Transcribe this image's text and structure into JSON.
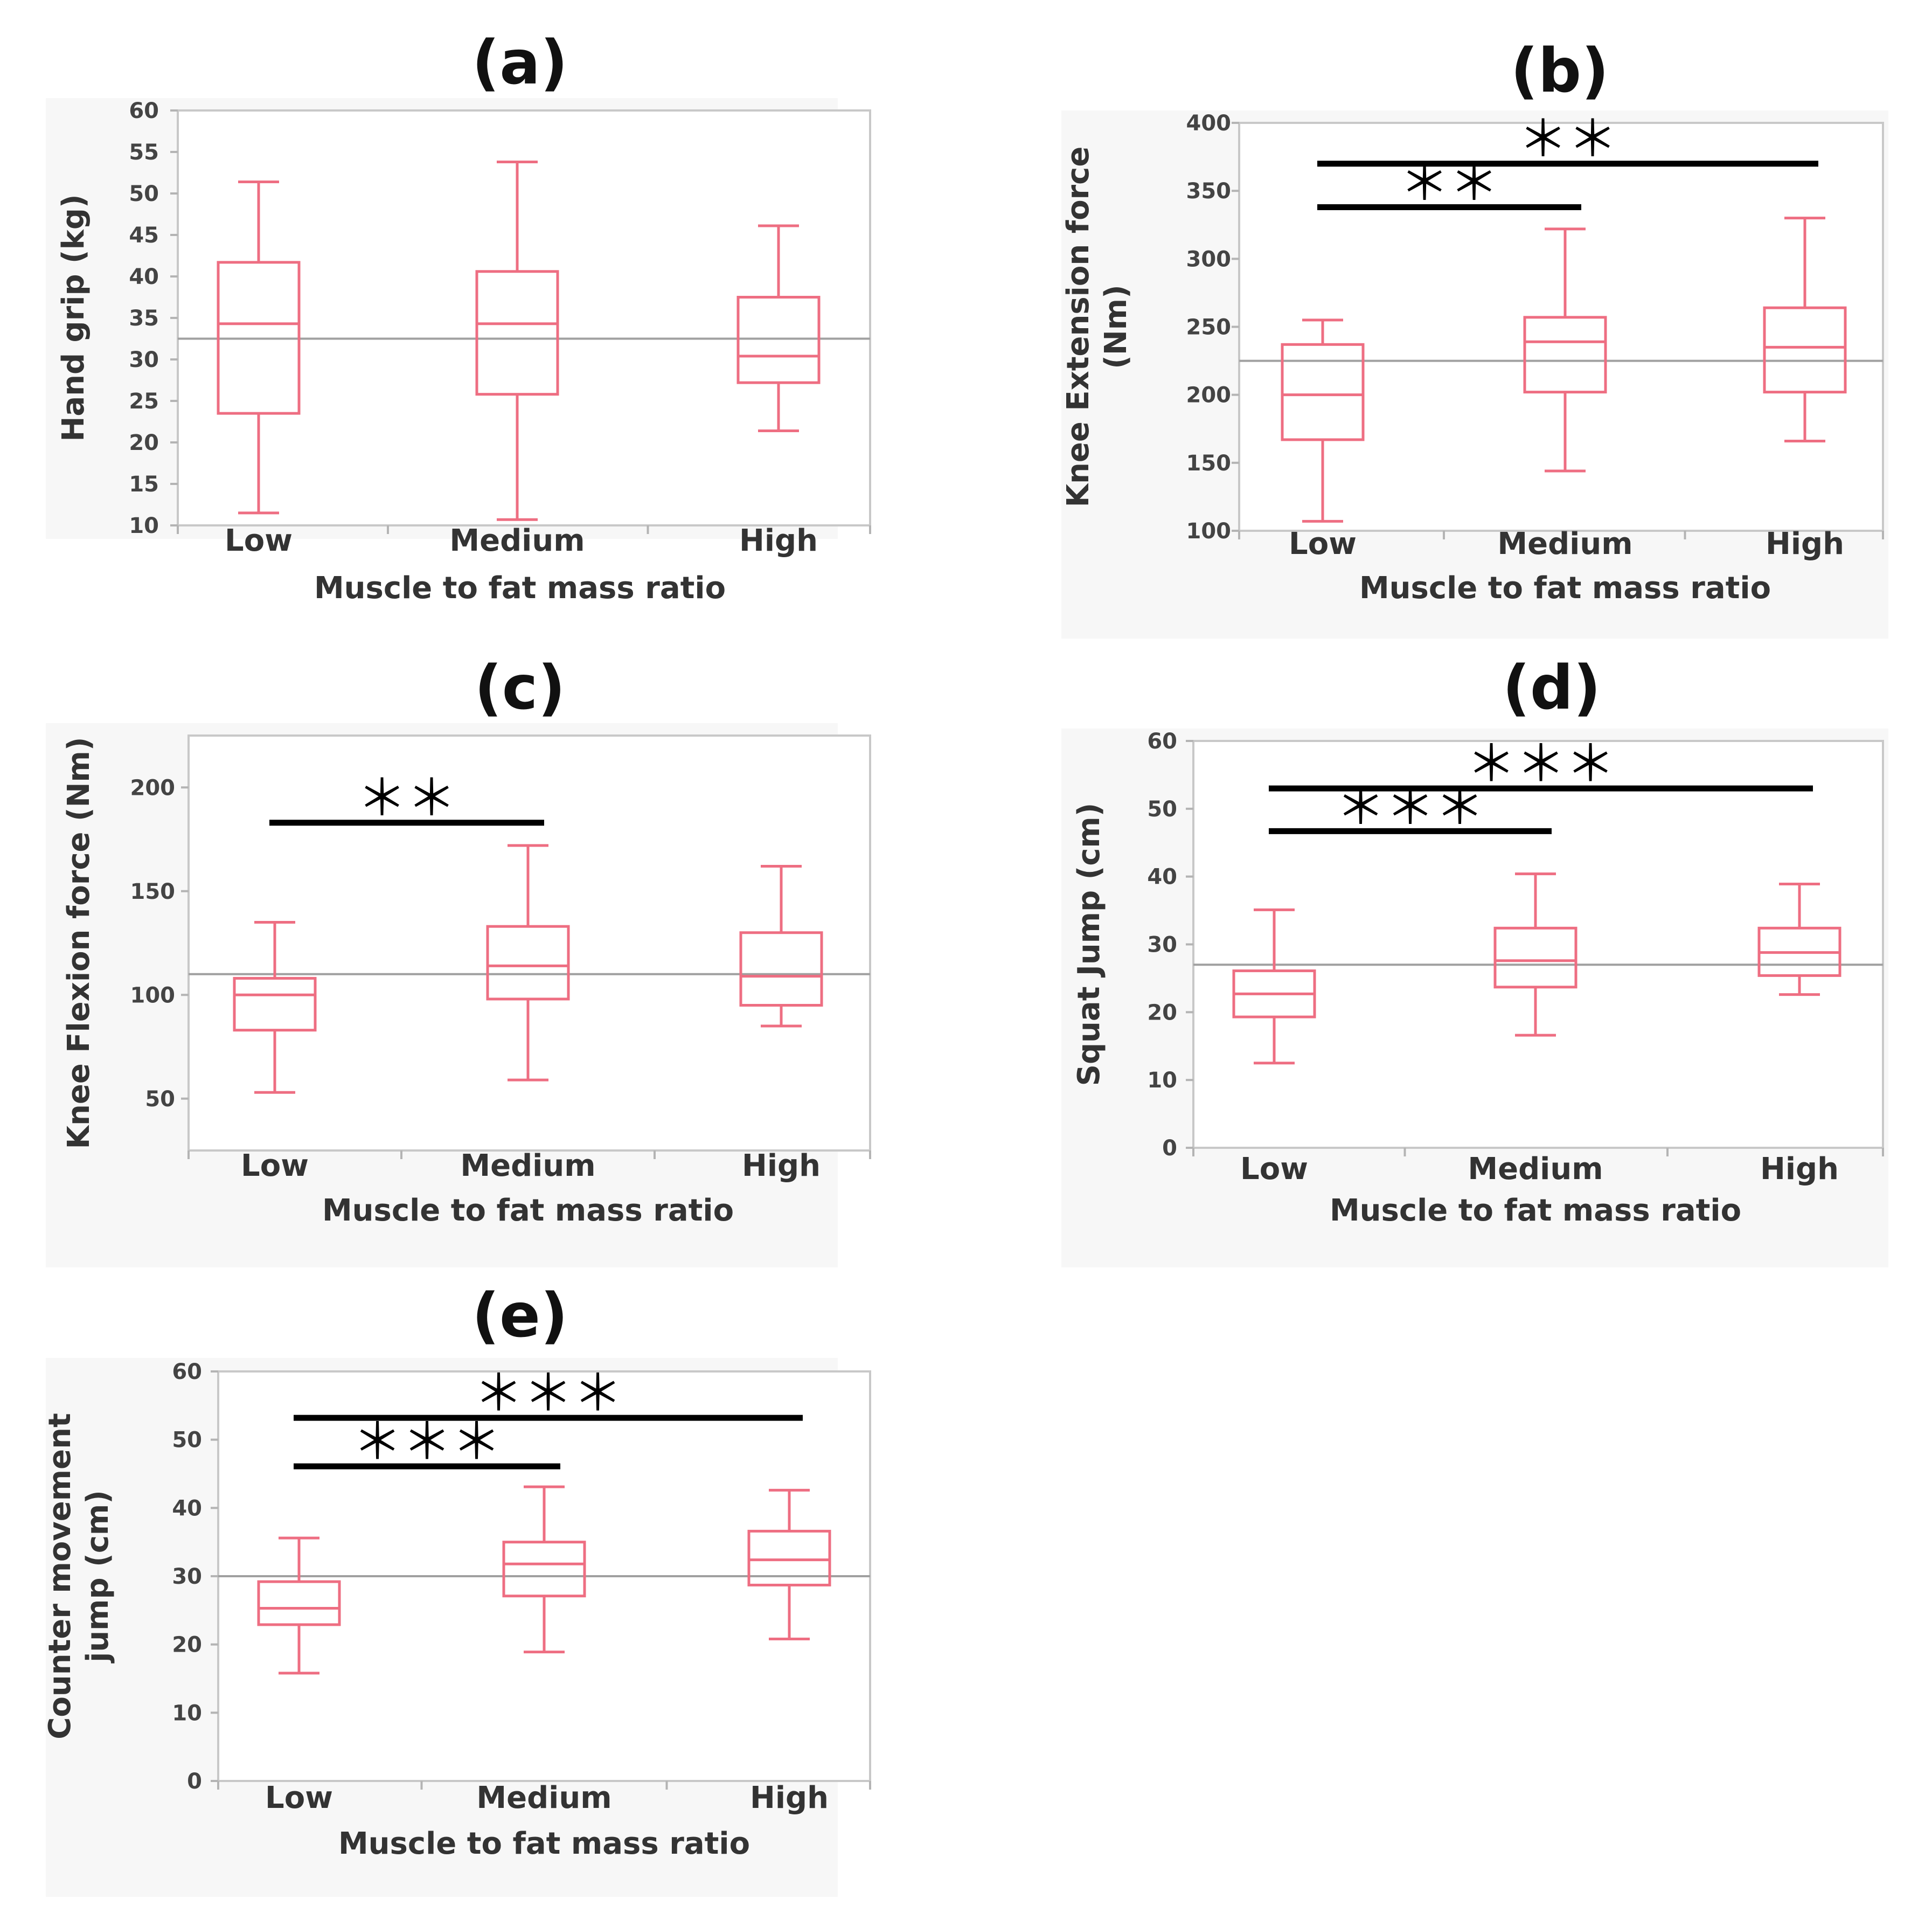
{
  "chart_data": [
    {
      "type": "box",
      "panel": "(a)",
      "xlabel": "Muscle to fat mass ratio",
      "ylabel": [
        "Hand grip (kg)"
      ],
      "categories": [
        "Low",
        "Medium",
        "High"
      ],
      "ylim": [
        10,
        60
      ],
      "yticks": [
        10,
        15,
        20,
        25,
        30,
        35,
        40,
        45,
        50,
        55,
        60
      ],
      "reference_line": 32.5,
      "boxes": [
        {
          "min": 11.5,
          "q1": 23.5,
          "median": 34.3,
          "q3": 41.7,
          "max": 51.4
        },
        {
          "min": 10.7,
          "q1": 25.8,
          "median": 34.3,
          "q3": 40.6,
          "max": 53.8
        },
        {
          "min": 21.4,
          "q1": 27.2,
          "median": 30.4,
          "q3": 37.5,
          "max": 46.1
        }
      ],
      "significance": []
    },
    {
      "type": "box",
      "panel": "(b)",
      "xlabel": "Muscle to fat mass ratio",
      "ylabel": [
        "Knee Extension force",
        "(Nm)"
      ],
      "categories": [
        "Low",
        "Medium",
        "High"
      ],
      "ylim": [
        100,
        400
      ],
      "yticks": [
        100,
        150,
        200,
        250,
        300,
        350,
        400
      ],
      "reference_line": 225,
      "boxes": [
        {
          "min": 107,
          "q1": 167,
          "median": 200,
          "q3": 237,
          "max": 255
        },
        {
          "min": 144,
          "q1": 202,
          "median": 239,
          "q3": 257,
          "max": 322
        },
        {
          "min": 166,
          "q1": 202,
          "median": 235,
          "q3": 264,
          "max": 330
        }
      ],
      "significance": [
        {
          "from": 0,
          "to": 2,
          "y": 370,
          "label": "＊＊"
        },
        {
          "from": 0,
          "to": 1,
          "y": 338,
          "label": "＊＊"
        }
      ]
    },
    {
      "type": "box",
      "panel": "(c)",
      "xlabel": "Muscle to fat mass ratio",
      "ylabel": [
        "Knee Flexion force (Nm)"
      ],
      "categories": [
        "Low",
        "Medium",
        "High"
      ],
      "ylim": [
        25,
        225
      ],
      "yticks": [
        50,
        100,
        150,
        200
      ],
      "reference_line": 110,
      "boxes": [
        {
          "min": 53,
          "q1": 83,
          "median": 100,
          "q3": 108,
          "max": 135
        },
        {
          "min": 59,
          "q1": 98,
          "median": 114,
          "q3": 133,
          "max": 172
        },
        {
          "min": 85,
          "q1": 95,
          "median": 109,
          "q3": 130,
          "max": 162
        }
      ],
      "significance": [
        {
          "from": 0,
          "to": 1,
          "y": 183,
          "label": "＊＊"
        }
      ]
    },
    {
      "type": "box",
      "panel": "(d)",
      "xlabel": "Muscle to fat mass ratio",
      "ylabel": [
        "Squat Jump (cm)"
      ],
      "categories": [
        "Low",
        "Medium",
        "High"
      ],
      "ylim": [
        0,
        60
      ],
      "yticks": [
        0,
        10,
        20,
        30,
        40,
        50,
        60
      ],
      "reference_line": 27,
      "boxes": [
        {
          "min": 12.5,
          "q1": 19.3,
          "median": 22.7,
          "q3": 26.1,
          "max": 35.1
        },
        {
          "min": 16.6,
          "q1": 23.7,
          "median": 27.6,
          "q3": 32.4,
          "max": 40.4
        },
        {
          "min": 22.6,
          "q1": 25.4,
          "median": 28.8,
          "q3": 32.4,
          "max": 38.9
        }
      ],
      "significance": [
        {
          "from": 0,
          "to": 2,
          "y": 53,
          "label": "＊＊＊"
        },
        {
          "from": 0,
          "to": 1,
          "y": 46.7,
          "label": "＊＊＊"
        }
      ]
    },
    {
      "type": "box",
      "panel": "(e)",
      "xlabel": "Muscle to fat mass ratio",
      "ylabel": [
        "Counter movement",
        "jump (cm)"
      ],
      "categories": [
        "Low",
        "Medium",
        "High"
      ],
      "ylim": [
        0,
        60
      ],
      "yticks": [
        0,
        10,
        20,
        30,
        40,
        50,
        60
      ],
      "reference_line": 30,
      "boxes": [
        {
          "min": 15.8,
          "q1": 22.9,
          "median": 25.3,
          "q3": 29.2,
          "max": 35.6
        },
        {
          "min": 18.9,
          "q1": 27.1,
          "median": 31.8,
          "q3": 35.0,
          "max": 43.1
        },
        {
          "min": 20.8,
          "q1": 28.7,
          "median": 32.4,
          "q3": 36.6,
          "max": 42.6
        }
      ],
      "significance": [
        {
          "from": 0,
          "to": 2,
          "y": 53.2,
          "label": "＊＊＊"
        },
        {
          "from": 0,
          "to": 1,
          "y": 46.1,
          "label": "＊＊＊"
        }
      ]
    }
  ]
}
